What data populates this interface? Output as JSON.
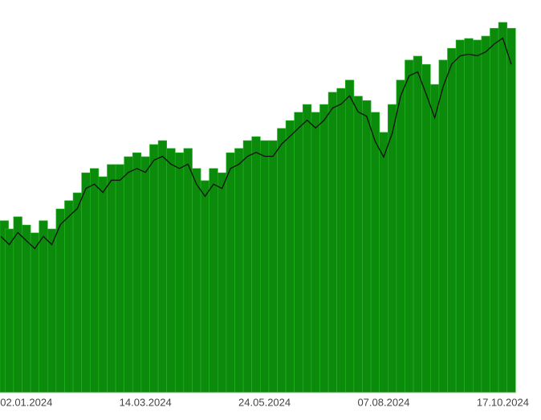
{
  "chart_data": {
    "type": "bar-line",
    "categories": [
      null,
      null,
      null,
      "02.01.2024",
      null,
      null,
      null,
      null,
      null,
      null,
      null,
      null,
      null,
      null,
      null,
      null,
      null,
      "14.03.2024",
      null,
      null,
      null,
      null,
      null,
      null,
      null,
      null,
      null,
      null,
      null,
      null,
      null,
      "24.05.2024",
      null,
      null,
      null,
      null,
      null,
      null,
      null,
      null,
      null,
      null,
      null,
      null,
      null,
      "07.08.2024",
      null,
      null,
      null,
      null,
      null,
      null,
      null,
      null,
      null,
      null,
      null,
      null,
      null,
      "17.10.2024",
      null
    ],
    "series": [
      {
        "type": "bar",
        "color": "#0b8a0b",
        "values": [
          43.8,
          41.7,
          44.8,
          42.7,
          40.7,
          43.8,
          41.7,
          46.8,
          48.9,
          50.9,
          56.0,
          57.1,
          55.0,
          58.1,
          58.1,
          60.1,
          61.1,
          60.1,
          63.2,
          64.2,
          62.2,
          61.1,
          62.2,
          57.1,
          54.0,
          57.1,
          56.0,
          61.1,
          62.2,
          64.2,
          65.2,
          64.2,
          64.2,
          67.3,
          69.3,
          71.4,
          73.4,
          71.4,
          73.4,
          76.5,
          77.5,
          79.6,
          75.5,
          74.4,
          71.4,
          66.3,
          73.4,
          79.6,
          84.7,
          85.7,
          83.6,
          78.5,
          84.7,
          87.7,
          89.8,
          90.2,
          89.8,
          90.8,
          92.8,
          94.3,
          92.8
        ]
      },
      {
        "type": "line",
        "color": "#111111",
        "values": [
          39.8,
          37.7,
          40.8,
          38.7,
          36.7,
          39.8,
          37.7,
          42.8,
          44.9,
          46.9,
          52.0,
          53.1,
          51.0,
          54.1,
          54.1,
          56.1,
          57.1,
          56.1,
          59.2,
          60.2,
          58.2,
          57.1,
          58.2,
          53.1,
          50.0,
          53.1,
          52.0,
          57.1,
          58.2,
          60.2,
          61.2,
          60.2,
          60.2,
          63.3,
          65.3,
          67.4,
          69.4,
          67.4,
          69.4,
          72.5,
          73.5,
          75.6,
          71.5,
          70.4,
          64.0,
          60.0,
          66.0,
          75.6,
          80.7,
          81.7,
          76.0,
          70.0,
          78.0,
          83.7,
          85.8,
          86.2,
          85.8,
          86.8,
          88.8,
          90.3,
          83.6
        ]
      }
    ],
    "ylim": [
      0,
      100
    ]
  }
}
